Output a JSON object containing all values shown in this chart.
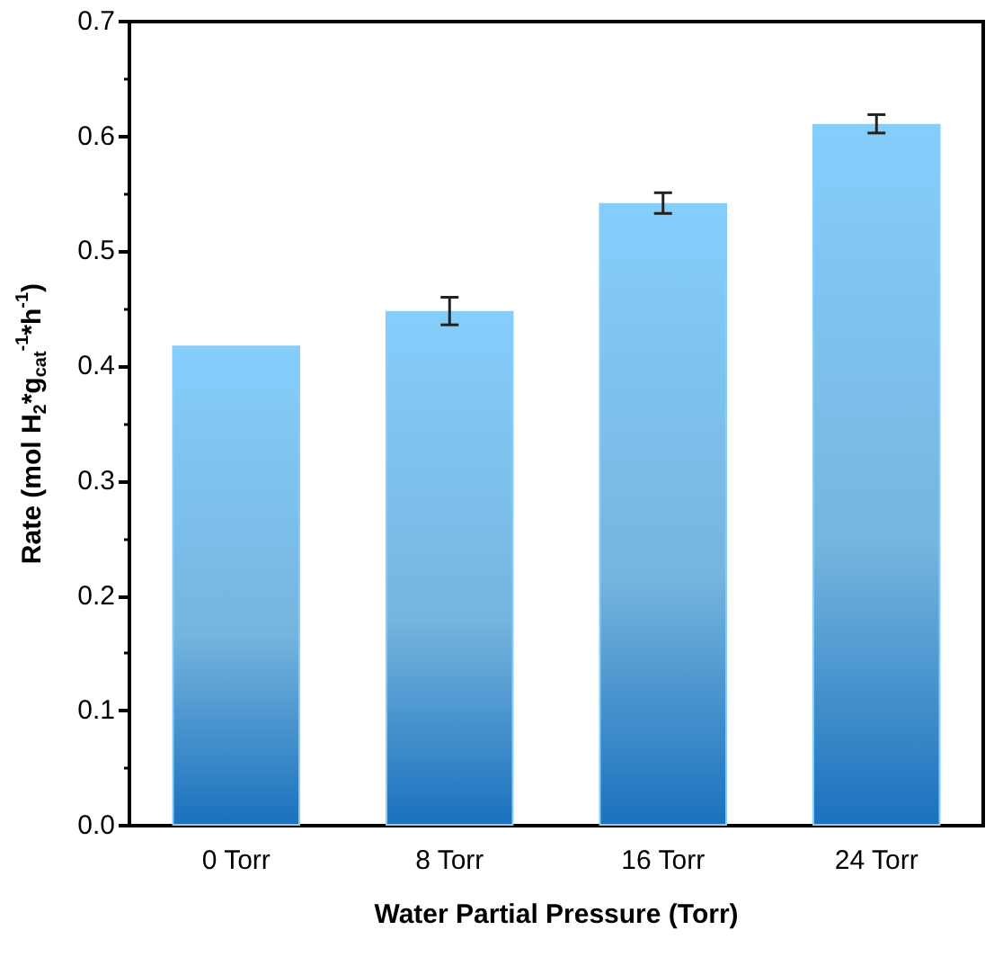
{
  "chart_data": {
    "type": "bar",
    "xlabel": "Water Partial Pressure (Torr)",
    "ylabel": "Rate (mol H$_{2}$*g$_{cat}$$^{-1}$*h$^{-1}$)",
    "categories": [
      "0 Torr",
      "8 Torr",
      "16 Torr",
      "24 Torr"
    ],
    "values": [
      0.418,
      0.448,
      0.542,
      0.611
    ],
    "errors": [
      null,
      0.012,
      0.009,
      0.008
    ],
    "color": "#85cefc",
    "ylim": [
      0,
      0.7
    ],
    "yticks": [
      {
        "value": 0,
        "label": "0.0"
      },
      0.1,
      0.2,
      0.3,
      0.4,
      0.5,
      0.6,
      0.7
    ],
    "grid": false
  }
}
